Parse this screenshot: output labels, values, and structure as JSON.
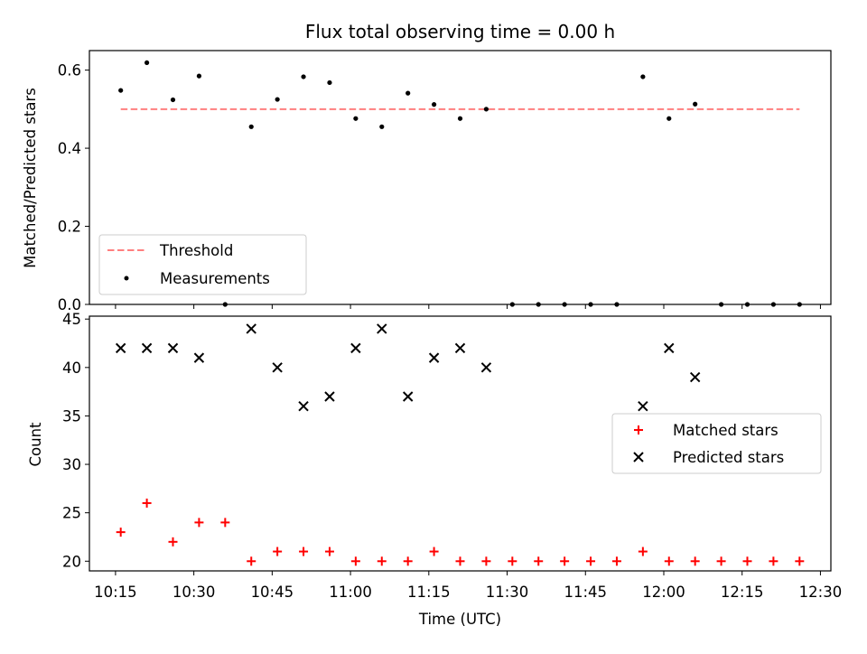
{
  "chart_data": [
    {
      "type": "scatter",
      "title": "Flux total observing time = 0.00 h",
      "xlabel": "",
      "ylabel": "Matched/Predicted stars",
      "ylim": [
        0,
        0.65
      ],
      "yticks": [
        0.0,
        0.2,
        0.4,
        0.6
      ],
      "ytick_labels": [
        "0.0",
        "0.2",
        "0.4",
        "0.6"
      ],
      "x": [
        "10:16",
        "10:21",
        "10:26",
        "10:31",
        "10:36",
        "10:41",
        "10:46",
        "10:51",
        "10:56",
        "11:01",
        "11:06",
        "11:11",
        "11:16",
        "11:21",
        "11:26",
        "11:31",
        "11:36",
        "11:41",
        "11:46",
        "11:51",
        "11:56",
        "12:01",
        "12:06",
        "12:11",
        "12:16",
        "12:21",
        "12:26"
      ],
      "series": [
        {
          "name": "Measurements",
          "marker": "dot",
          "color": "#000000",
          "values": [
            0.548,
            0.619,
            0.524,
            0.585,
            0.0,
            0.455,
            0.525,
            0.583,
            0.568,
            0.476,
            0.455,
            0.541,
            0.512,
            0.476,
            0.5,
            0.0,
            0.0,
            0.0,
            0.0,
            0.0,
            0.583,
            0.476,
            0.513,
            0.0,
            0.0,
            0.0,
            0.0
          ]
        },
        {
          "name": "Threshold",
          "style": "dashed",
          "color": "#ff7f7f",
          "x": [
            "10:16",
            "12:26"
          ],
          "values": [
            0.5,
            0.5
          ]
        }
      ],
      "legend": {
        "position": "lower-left",
        "entries": [
          "Threshold",
          "Measurements"
        ]
      }
    },
    {
      "type": "scatter",
      "xlabel": "Time (UTC)",
      "ylabel": "Count",
      "ylim": [
        19,
        45.3
      ],
      "yticks": [
        20,
        25,
        30,
        35,
        40,
        45
      ],
      "ytick_labels": [
        "20",
        "25",
        "30",
        "35",
        "40",
        "45"
      ],
      "xticks": [
        "10:15",
        "10:30",
        "10:45",
        "11:00",
        "11:15",
        "11:30",
        "11:45",
        "12:00",
        "12:15",
        "12:30"
      ],
      "xlim": [
        "10:10",
        "12:32"
      ],
      "x": [
        "10:16",
        "10:21",
        "10:26",
        "10:31",
        "10:36",
        "10:41",
        "10:46",
        "10:51",
        "10:56",
        "11:01",
        "11:06",
        "11:11",
        "11:16",
        "11:21",
        "11:26",
        "11:31",
        "11:36",
        "11:41",
        "11:46",
        "11:51",
        "11:56",
        "12:01",
        "12:06",
        "12:11",
        "12:16",
        "12:21",
        "12:26"
      ],
      "series": [
        {
          "name": "Matched stars",
          "marker": "plus",
          "color": "#ff0000",
          "values": [
            23,
            26,
            22,
            24,
            24,
            20,
            21,
            21,
            21,
            20,
            20,
            20,
            21,
            20,
            20,
            20,
            20,
            20,
            20,
            20,
            21,
            20,
            20,
            20,
            20,
            20,
            20
          ]
        },
        {
          "name": "Predicted stars",
          "marker": "x",
          "color": "#000000",
          "values": [
            42,
            42,
            42,
            41,
            null,
            44,
            40,
            36,
            37,
            42,
            44,
            37,
            41,
            42,
            40,
            null,
            null,
            null,
            null,
            null,
            36,
            42,
            39,
            null,
            null,
            null,
            null
          ]
        }
      ],
      "legend": {
        "position": "center-right",
        "entries": [
          "Matched stars",
          "Predicted stars"
        ]
      }
    }
  ]
}
